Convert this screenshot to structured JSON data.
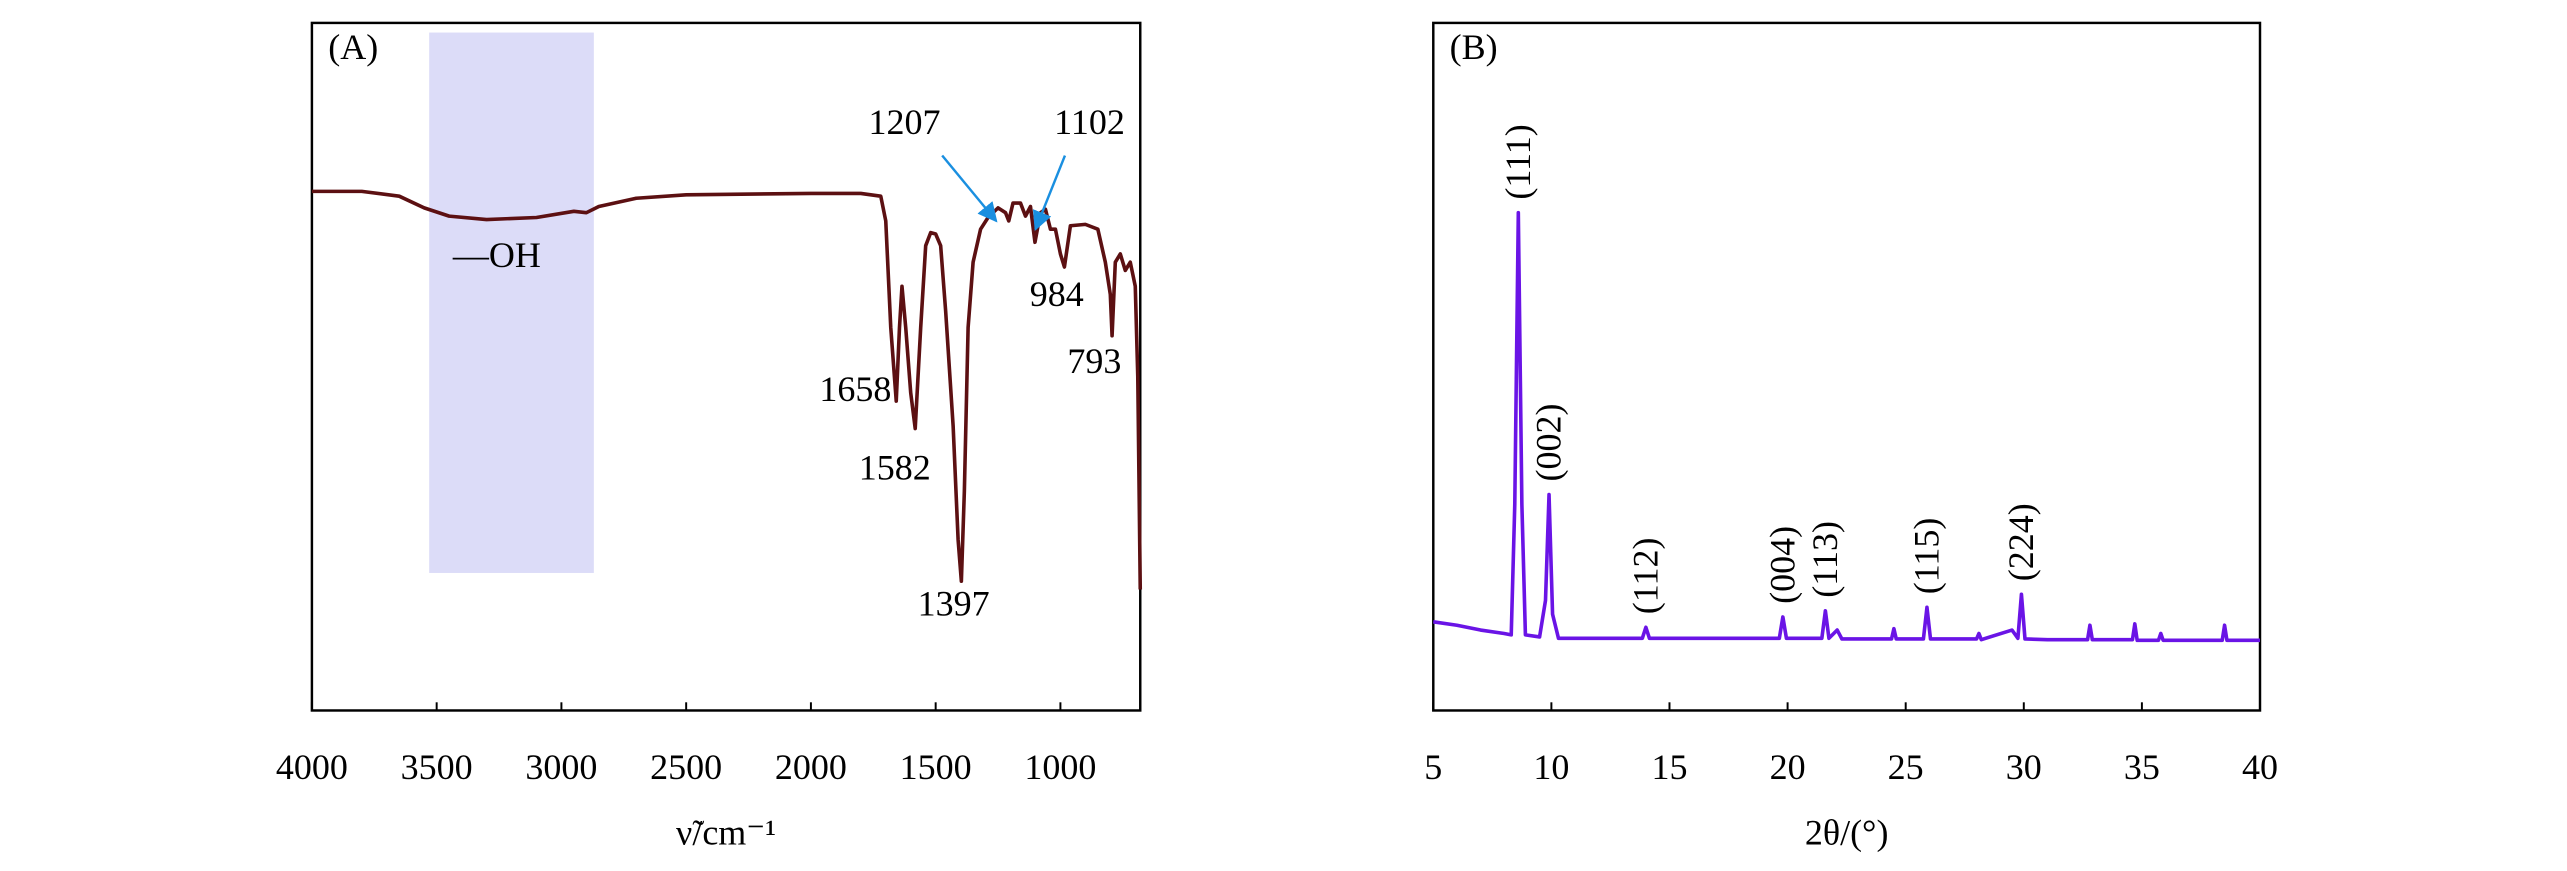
{
  "chart_data": [
    {
      "type": "line",
      "panel_label": "(A)",
      "x_label": "ν̃/cm⁻¹",
      "xlim": [
        4000,
        680
      ],
      "xticks": [
        4000,
        3500,
        3000,
        2500,
        2000,
        1500,
        1000
      ],
      "ylim": [
        0,
        100
      ],
      "highlight": {
        "x": [
          3530,
          2870
        ],
        "y": [
          20,
          98.6
        ],
        "color": "#dcdcf8"
      },
      "annotations": [
        "1207",
        "1102",
        "—OH",
        "1658",
        "1582",
        "1397",
        "984",
        "793"
      ],
      "arrow_color": "#1a8fe0",
      "series": [
        {
          "color": "#5c1012",
          "x": [
            4000,
            3800,
            3650,
            3550,
            3450,
            3300,
            3100,
            2950,
            2900,
            2850,
            2700,
            2500,
            2000,
            1800,
            1720,
            1700,
            1680,
            1658,
            1645,
            1635,
            1620,
            1600,
            1582,
            1560,
            1540,
            1520,
            1500,
            1480,
            1460,
            1430,
            1410,
            1397,
            1385,
            1370,
            1350,
            1320,
            1290,
            1250,
            1220,
            1207,
            1190,
            1160,
            1140,
            1120,
            1102,
            1080,
            1060,
            1040,
            1020,
            1000,
            984,
            960,
            900,
            850,
            820,
            800,
            793,
            780,
            760,
            740,
            720,
            700,
            690,
            680
          ],
          "values": [
            75.5,
            75.5,
            74.8,
            73.1,
            71.9,
            71.4,
            71.7,
            72.6,
            72.4,
            73.3,
            74.5,
            75.0,
            75.2,
            75.2,
            74.8,
            71.2,
            55.7,
            45.0,
            55.7,
            61.7,
            55.7,
            46.2,
            41.0,
            55.7,
            67.6,
            69.5,
            69.3,
            67.6,
            58.1,
            41.4,
            24.8,
            18.8,
            31.9,
            55.7,
            65.2,
            70.0,
            71.7,
            73.1,
            72.4,
            71.2,
            73.8,
            73.8,
            71.9,
            73.3,
            68.1,
            72.4,
            72.9,
            70.0,
            70.0,
            66.4,
            64.5,
            70.5,
            70.7,
            70.0,
            65.2,
            60.5,
            54.5,
            65.2,
            66.4,
            64.0,
            65.2,
            61.7,
            48.6,
            17.6
          ]
        }
      ]
    },
    {
      "type": "line",
      "panel_label": "(B)",
      "x_label": "2θ/(°)",
      "xlim": [
        5,
        40
      ],
      "xticks": [
        5,
        10,
        15,
        20,
        25,
        30,
        35,
        40
      ],
      "ylim": [
        0,
        100
      ],
      "peak_labels": [
        {
          "text": "(111)",
          "x": 8.6
        },
        {
          "text": "(002)",
          "x": 9.9
        },
        {
          "text": "(112)",
          "x": 14
        },
        {
          "text": "(004)",
          "x": 19.8
        },
        {
          "text": "(113)",
          "x": 21.6
        },
        {
          "text": "(115)",
          "x": 25.9
        },
        {
          "text": "(224)",
          "x": 29.9
        }
      ],
      "series": [
        {
          "color": "#6a14e6",
          "x": [
            5,
            6,
            7,
            8,
            8.3,
            8.45,
            8.6,
            8.75,
            8.9,
            9.5,
            9.75,
            9.9,
            10.05,
            10.3,
            12,
            13.85,
            14,
            14.15,
            16,
            18,
            19.65,
            19.8,
            19.95,
            21.45,
            21.6,
            21.75,
            22.1,
            22.3,
            24.4,
            24.5,
            24.6,
            25.75,
            25.9,
            26.05,
            28,
            28.1,
            28.2,
            29.5,
            29.75,
            29.9,
            30.05,
            31,
            32.7,
            32.8,
            32.9,
            34.6,
            34.7,
            34.8,
            35.7,
            35.8,
            35.9,
            38.4,
            38.5,
            38.6,
            40
          ],
          "values": [
            12.9,
            12.4,
            11.7,
            11.2,
            11.0,
            30,
            72.4,
            30,
            11.0,
            10.7,
            16,
            31.4,
            14,
            10.5,
            10.5,
            10.5,
            12.1,
            10.5,
            10.5,
            10.5,
            10.5,
            13.6,
            10.5,
            10.5,
            14.5,
            10.5,
            11.7,
            10.4,
            10.4,
            11.9,
            10.4,
            10.4,
            15.0,
            10.4,
            10.4,
            11.2,
            10.3,
            11.7,
            10.5,
            16.9,
            10.4,
            10.3,
            10.3,
            12.4,
            10.3,
            10.3,
            12.6,
            10.2,
            10.2,
            11.2,
            10.2,
            10.2,
            12.4,
            10.2,
            10.2
          ]
        }
      ]
    }
  ]
}
